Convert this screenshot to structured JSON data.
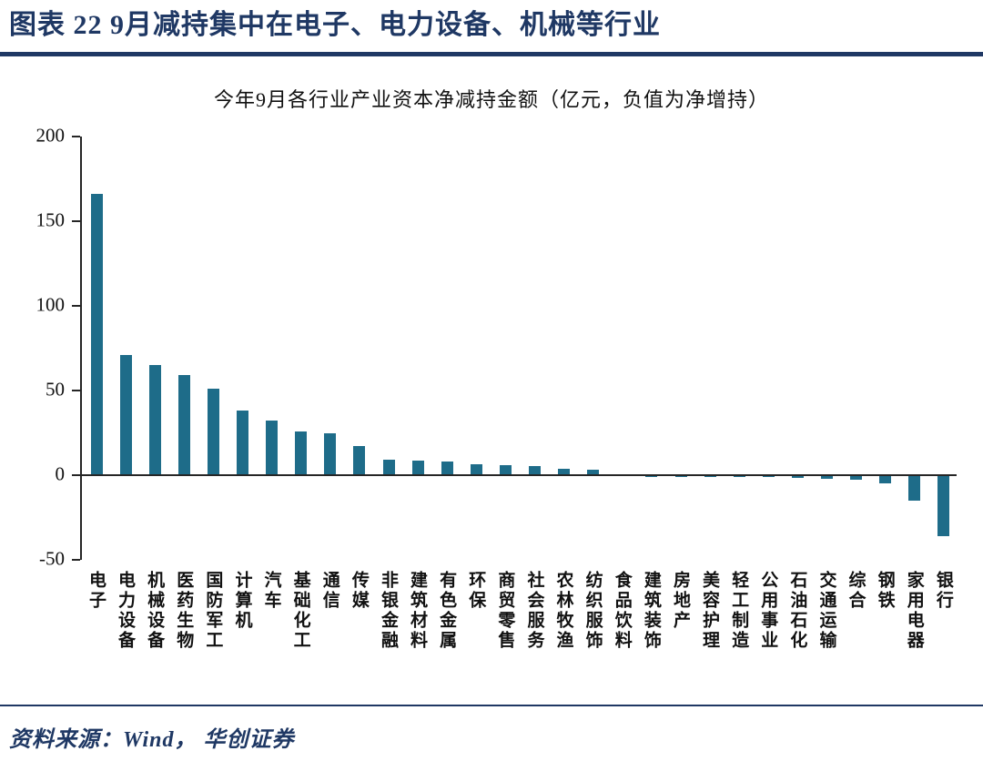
{
  "header": {
    "title": "图表 22  9月减持集中在电子、电力设备、机械等行业"
  },
  "footer": {
    "source": "资料来源：Wind， 华创证券"
  },
  "colors": {
    "navy": "#1F3864",
    "bar": "#1E6C89",
    "axis": "#262626"
  },
  "chart_data": {
    "type": "bar",
    "title": "今年9月各行业产业资本净减持金额（亿元，负值为净增持）",
    "xlabel": "",
    "ylabel": "",
    "ylim": [
      -50,
      200
    ],
    "yticks": [
      200,
      150,
      100,
      50,
      0,
      -50
    ],
    "grid": false,
    "legend_position": "none",
    "bar_color": "#1E6C89",
    "categories": [
      "电子",
      "电力设备",
      "机械设备",
      "医药生物",
      "国防军工",
      "计算机",
      "汽车",
      "基础化工",
      "通信",
      "传媒",
      "非银金融",
      "建筑材料",
      "有色金属",
      "环保",
      "商贸零售",
      "社会服务",
      "农林牧渔",
      "纺织服饰",
      "食品饮料",
      "建筑装饰",
      "房地产",
      "美容护理",
      "轻工制造",
      "公用事业",
      "石油石化",
      "交通运输",
      "综合",
      "钢铁",
      "家用电器",
      "银行"
    ],
    "values": [
      166,
      71,
      65,
      59,
      51,
      38,
      32,
      26,
      25,
      17,
      9,
      8.5,
      8,
      6.5,
      6,
      5.5,
      4,
      3,
      0.5,
      -0.3,
      -0.5,
      -0.8,
      -1,
      -1.2,
      -1.5,
      -2,
      -2.5,
      -5,
      -15,
      -36
    ]
  }
}
